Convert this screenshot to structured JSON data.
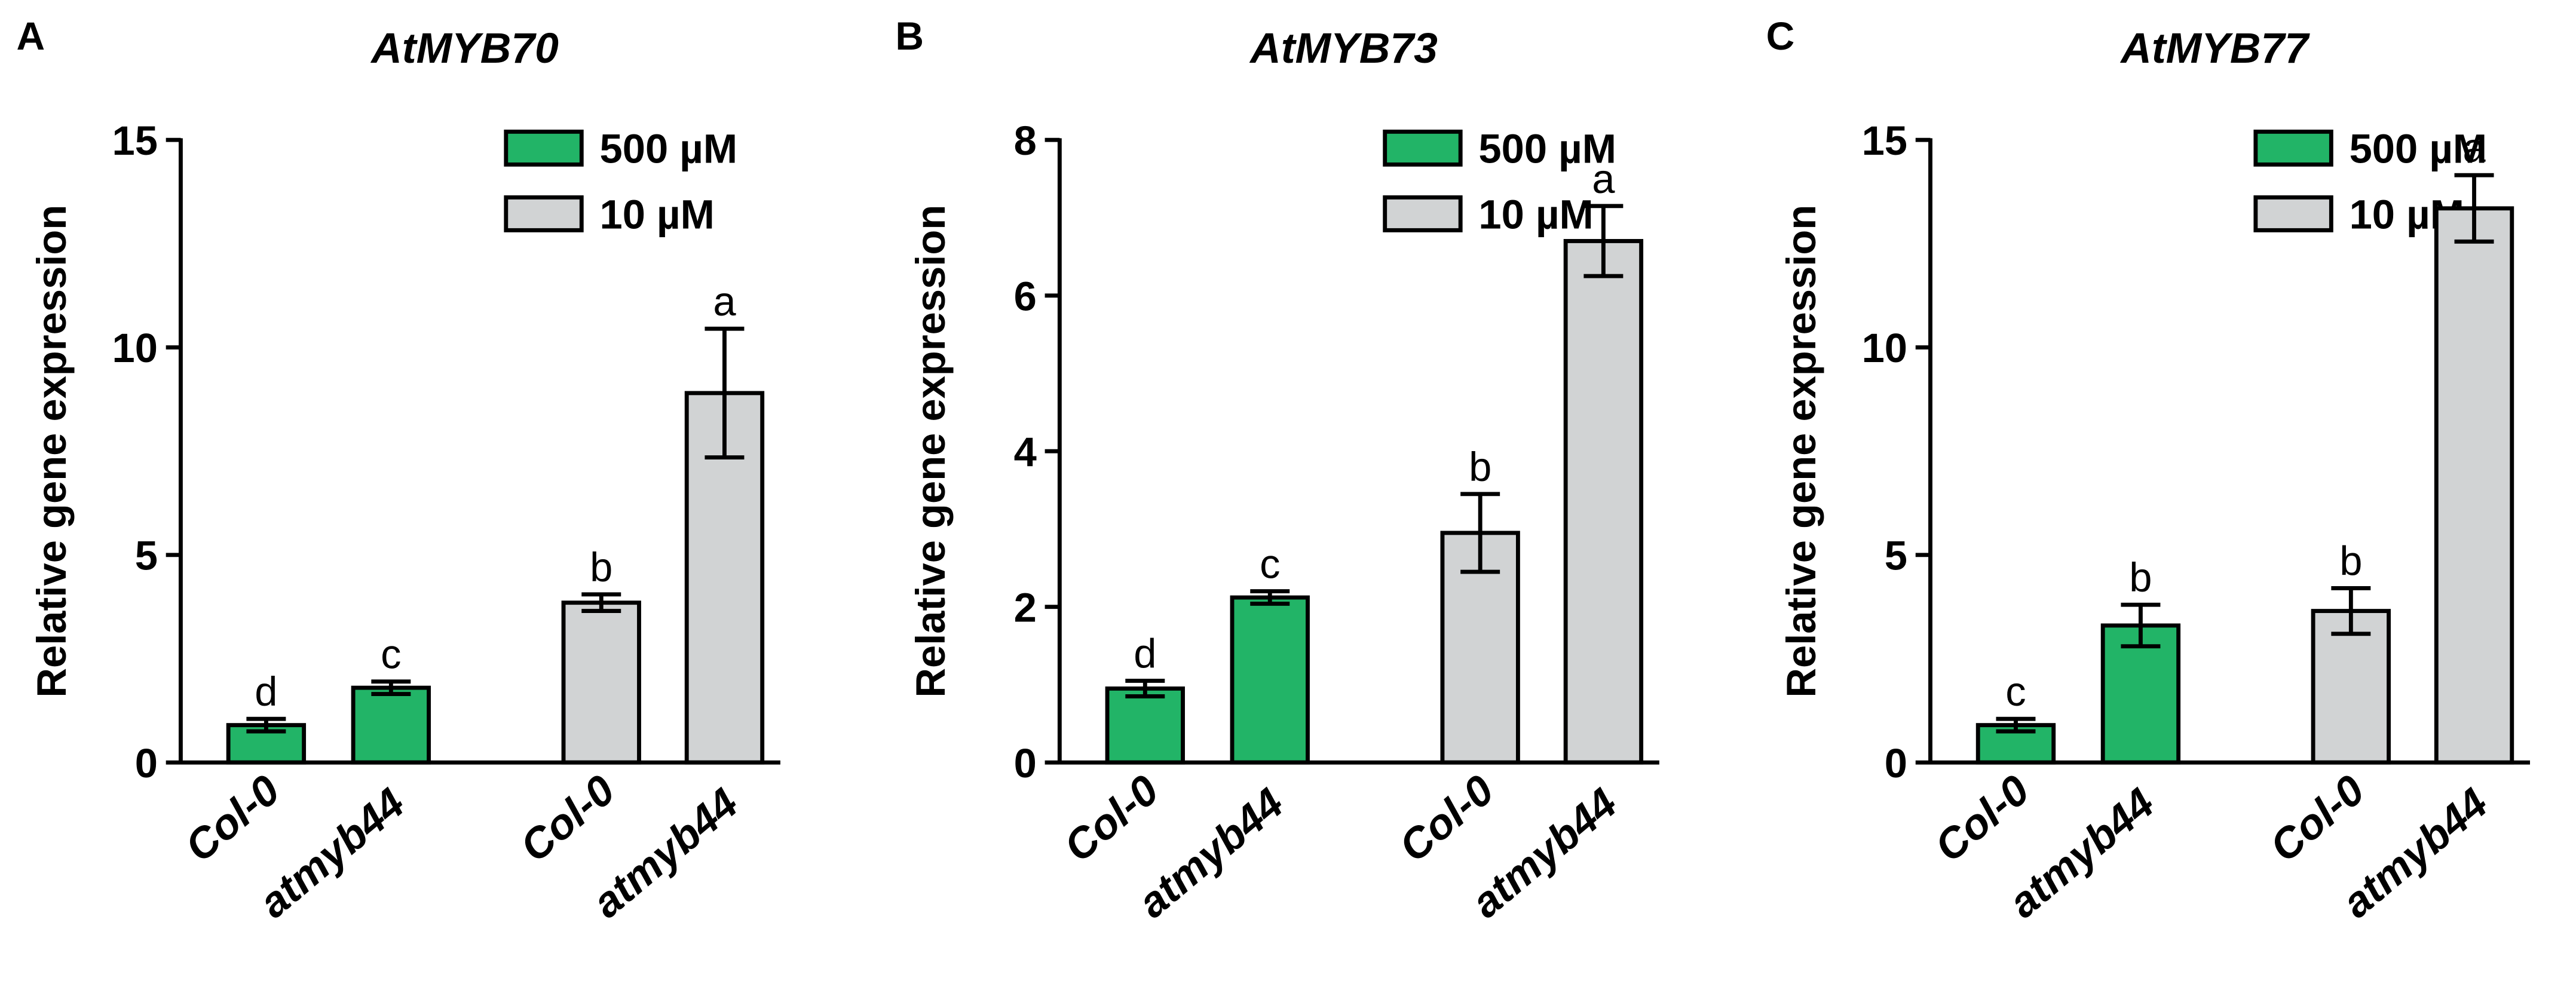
{
  "chart_data": [
    {
      "type": "bar",
      "panel": "A",
      "title": "AtMYB70",
      "y_label": "Relative gene expression",
      "categories": [
        "Col-0",
        "atmyb44",
        "Col-0",
        "atmyb44"
      ],
      "series": [
        {
          "name": "500 µM",
          "color": "#22b467",
          "values": [
            0.9,
            1.8,
            null,
            null
          ],
          "errors": [
            0.15,
            0.15,
            null,
            null
          ],
          "letters": [
            "d",
            "c",
            null,
            null
          ]
        },
        {
          "name": "10 µM",
          "color": "#d1d3d4",
          "values": [
            null,
            null,
            3.85,
            8.9
          ],
          "errors": [
            null,
            null,
            0.2,
            1.55
          ],
          "letters": [
            null,
            null,
            "b",
            "a"
          ]
        }
      ],
      "ylim": [
        0,
        15
      ],
      "yticks": [
        0,
        5,
        10,
        15
      ]
    },
    {
      "type": "bar",
      "panel": "B",
      "title": "AtMYB73",
      "y_label": "Relative gene expression",
      "categories": [
        "Col-0",
        "atmyb44",
        "Col-0",
        "atmyb44"
      ],
      "series": [
        {
          "name": "500 µM",
          "color": "#22b467",
          "values": [
            0.95,
            2.12,
            null,
            null
          ],
          "errors": [
            0.1,
            0.08,
            null,
            null
          ],
          "letters": [
            "d",
            "c",
            null,
            null
          ]
        },
        {
          "name": "10 µM",
          "color": "#d1d3d4",
          "values": [
            null,
            null,
            2.95,
            6.7
          ],
          "errors": [
            null,
            null,
            0.5,
            0.45
          ],
          "letters": [
            null,
            null,
            "b",
            "a"
          ]
        }
      ],
      "ylim": [
        0,
        8
      ],
      "yticks": [
        0,
        2,
        4,
        6,
        8
      ]
    },
    {
      "type": "bar",
      "panel": "C",
      "title": "AtMYB77",
      "y_label": "Relative gene expression",
      "categories": [
        "Col-0",
        "atmyb44",
        "Col-0",
        "atmyb44"
      ],
      "series": [
        {
          "name": "500 µM",
          "color": "#22b467",
          "values": [
            0.9,
            3.3,
            null,
            null
          ],
          "errors": [
            0.15,
            0.5,
            null,
            null
          ],
          "letters": [
            "c",
            "b",
            null,
            null
          ]
        },
        {
          "name": "10 µM",
          "color": "#d1d3d4",
          "values": [
            null,
            null,
            3.65,
            13.35
          ],
          "errors": [
            null,
            null,
            0.55,
            0.8
          ],
          "letters": [
            null,
            null,
            "b",
            "a"
          ]
        }
      ],
      "ylim": [
        0,
        15
      ],
      "yticks": [
        0,
        5,
        10,
        15
      ]
    }
  ]
}
